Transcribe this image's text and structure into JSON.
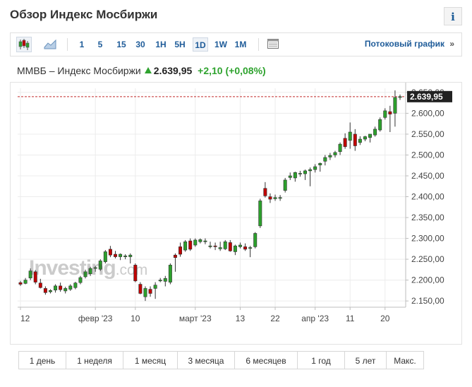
{
  "header": {
    "title": "Обзор Индекс Мосбиржи",
    "info_label": "i"
  },
  "toolbar": {
    "chart_type_icons": [
      "candlestick-icon",
      "area-chart-icon"
    ],
    "intervals": [
      "1",
      "5",
      "15",
      "30",
      "1H",
      "5H",
      "1D",
      "1W",
      "1M"
    ],
    "active_interval": "1D",
    "table_icon": "table-icon",
    "streaming_label": "Потоковый график",
    "streaming_arrow": "»"
  },
  "quote": {
    "name": "ММВБ – Индекс Мосбиржи",
    "last": "2.639,95",
    "change": "+2,10",
    "change_pct": "(+0,08%)",
    "direction_icon": "up-arrow-icon"
  },
  "watermark": {
    "brand": "Investing",
    "suffix": ".com"
  },
  "colors": {
    "up": "#2ca02c",
    "down": "#c00000",
    "link": "#1f5c99",
    "last_price_line": "#c22b2b",
    "last_price_box": "#222222"
  },
  "chart_data": {
    "type": "candlestick",
    "ylim": [
      2135,
      2660
    ],
    "yticks": [
      2150,
      2200,
      2250,
      2300,
      2350,
      2400,
      2450,
      2500,
      2550,
      2600,
      2650
    ],
    "ytick_labels": [
      "2.150,00",
      "2.200,00",
      "2.250,00",
      "2.300,00",
      "2.350,00",
      "2.400,00",
      "2.450,00",
      "2.500,00",
      "2.550,00",
      "2.600,00",
      "2.650,00"
    ],
    "xticks": [
      {
        "index": 0,
        "label": "12"
      },
      {
        "index": 15,
        "label": "февр '23"
      },
      {
        "index": 23,
        "label": "10"
      },
      {
        "index": 35,
        "label": "март '23"
      },
      {
        "index": 44,
        "label": "13"
      },
      {
        "index": 51,
        "label": "22"
      },
      {
        "index": 59,
        "label": "апр '23"
      },
      {
        "index": 66,
        "label": "11"
      },
      {
        "index": 73,
        "label": "20"
      }
    ],
    "last_value": 2639.95,
    "last_label": "2.639,95",
    "candles": [
      {
        "o": 2194,
        "h": 2198,
        "l": 2186,
        "c": 2190
      },
      {
        "o": 2192,
        "h": 2205,
        "l": 2190,
        "c": 2200
      },
      {
        "o": 2205,
        "h": 2228,
        "l": 2200,
        "c": 2222
      },
      {
        "o": 2220,
        "h": 2224,
        "l": 2190,
        "c": 2195
      },
      {
        "o": 2193,
        "h": 2203,
        "l": 2180,
        "c": 2182
      },
      {
        "o": 2180,
        "h": 2185,
        "l": 2165,
        "c": 2170
      },
      {
        "o": 2172,
        "h": 2178,
        "l": 2168,
        "c": 2175
      },
      {
        "o": 2176,
        "h": 2190,
        "l": 2170,
        "c": 2186
      },
      {
        "o": 2186,
        "h": 2194,
        "l": 2172,
        "c": 2177
      },
      {
        "o": 2174,
        "h": 2184,
        "l": 2168,
        "c": 2180
      },
      {
        "o": 2178,
        "h": 2190,
        "l": 2174,
        "c": 2186
      },
      {
        "o": 2182,
        "h": 2196,
        "l": 2178,
        "c": 2193
      },
      {
        "o": 2194,
        "h": 2210,
        "l": 2190,
        "c": 2206
      },
      {
        "o": 2208,
        "h": 2225,
        "l": 2204,
        "c": 2220
      },
      {
        "o": 2215,
        "h": 2232,
        "l": 2210,
        "c": 2228
      },
      {
        "o": 2228,
        "h": 2234,
        "l": 2220,
        "c": 2230
      },
      {
        "o": 2226,
        "h": 2250,
        "l": 2222,
        "c": 2246
      },
      {
        "o": 2244,
        "h": 2272,
        "l": 2240,
        "c": 2268
      },
      {
        "o": 2274,
        "h": 2282,
        "l": 2255,
        "c": 2260
      },
      {
        "o": 2262,
        "h": 2270,
        "l": 2252,
        "c": 2256
      },
      {
        "o": 2256,
        "h": 2264,
        "l": 2248,
        "c": 2262
      },
      {
        "o": 2256,
        "h": 2262,
        "l": 2250,
        "c": 2258
      },
      {
        "o": 2256,
        "h": 2264,
        "l": 2240,
        "c": 2260
      },
      {
        "o": 2236,
        "h": 2240,
        "l": 2195,
        "c": 2198
      },
      {
        "o": 2190,
        "h": 2195,
        "l": 2166,
        "c": 2168
      },
      {
        "o": 2160,
        "h": 2185,
        "l": 2150,
        "c": 2180
      },
      {
        "o": 2178,
        "h": 2185,
        "l": 2160,
        "c": 2168
      },
      {
        "o": 2180,
        "h": 2195,
        "l": 2155,
        "c": 2188
      },
      {
        "o": 2198,
        "h": 2205,
        "l": 2195,
        "c": 2200
      },
      {
        "o": 2197,
        "h": 2210,
        "l": 2185,
        "c": 2204
      },
      {
        "o": 2195,
        "h": 2240,
        "l": 2190,
        "c": 2236
      },
      {
        "o": 2260,
        "h": 2264,
        "l": 2220,
        "c": 2254
      },
      {
        "o": 2280,
        "h": 2290,
        "l": 2256,
        "c": 2262
      },
      {
        "o": 2272,
        "h": 2296,
        "l": 2268,
        "c": 2292
      },
      {
        "o": 2294,
        "h": 2300,
        "l": 2270,
        "c": 2274
      },
      {
        "o": 2284,
        "h": 2300,
        "l": 2280,
        "c": 2296
      },
      {
        "o": 2292,
        "h": 2300,
        "l": 2288,
        "c": 2297
      },
      {
        "o": 2292,
        "h": 2300,
        "l": 2286,
        "c": 2294
      },
      {
        "o": 2280,
        "h": 2292,
        "l": 2276,
        "c": 2282
      },
      {
        "o": 2282,
        "h": 2290,
        "l": 2272,
        "c": 2280
      },
      {
        "o": 2275,
        "h": 2292,
        "l": 2270,
        "c": 2278
      },
      {
        "o": 2275,
        "h": 2296,
        "l": 2272,
        "c": 2292
      },
      {
        "o": 2290,
        "h": 2296,
        "l": 2268,
        "c": 2270
      },
      {
        "o": 2268,
        "h": 2285,
        "l": 2260,
        "c": 2282
      },
      {
        "o": 2280,
        "h": 2290,
        "l": 2276,
        "c": 2284
      },
      {
        "o": 2280,
        "h": 2288,
        "l": 2270,
        "c": 2274
      },
      {
        "o": 2276,
        "h": 2282,
        "l": 2255,
        "c": 2278
      },
      {
        "o": 2280,
        "h": 2315,
        "l": 2276,
        "c": 2312
      },
      {
        "o": 2330,
        "h": 2395,
        "l": 2325,
        "c": 2390
      },
      {
        "o": 2420,
        "h": 2435,
        "l": 2398,
        "c": 2402
      },
      {
        "o": 2400,
        "h": 2408,
        "l": 2385,
        "c": 2394
      },
      {
        "o": 2395,
        "h": 2405,
        "l": 2390,
        "c": 2398
      },
      {
        "o": 2396,
        "h": 2404,
        "l": 2390,
        "c": 2398
      },
      {
        "o": 2415,
        "h": 2445,
        "l": 2410,
        "c": 2440
      },
      {
        "o": 2446,
        "h": 2458,
        "l": 2440,
        "c": 2450
      },
      {
        "o": 2445,
        "h": 2460,
        "l": 2436,
        "c": 2458
      },
      {
        "o": 2455,
        "h": 2462,
        "l": 2448,
        "c": 2456
      },
      {
        "o": 2455,
        "h": 2465,
        "l": 2440,
        "c": 2462
      },
      {
        "o": 2462,
        "h": 2470,
        "l": 2425,
        "c": 2465
      },
      {
        "o": 2465,
        "h": 2478,
        "l": 2458,
        "c": 2472
      },
      {
        "o": 2476,
        "h": 2482,
        "l": 2460,
        "c": 2480
      },
      {
        "o": 2485,
        "h": 2500,
        "l": 2475,
        "c": 2494
      },
      {
        "o": 2495,
        "h": 2505,
        "l": 2488,
        "c": 2499
      },
      {
        "o": 2500,
        "h": 2510,
        "l": 2494,
        "c": 2506
      },
      {
        "o": 2508,
        "h": 2530,
        "l": 2500,
        "c": 2526
      },
      {
        "o": 2540,
        "h": 2552,
        "l": 2515,
        "c": 2520
      },
      {
        "o": 2535,
        "h": 2578,
        "l": 2515,
        "c": 2555
      },
      {
        "o": 2550,
        "h": 2562,
        "l": 2510,
        "c": 2522
      },
      {
        "o": 2530,
        "h": 2545,
        "l": 2524,
        "c": 2538
      },
      {
        "o": 2538,
        "h": 2546,
        "l": 2533,
        "c": 2544
      },
      {
        "o": 2542,
        "h": 2550,
        "l": 2530,
        "c": 2550
      },
      {
        "o": 2548,
        "h": 2568,
        "l": 2544,
        "c": 2562
      },
      {
        "o": 2560,
        "h": 2590,
        "l": 2556,
        "c": 2585
      },
      {
        "o": 2590,
        "h": 2612,
        "l": 2585,
        "c": 2606
      },
      {
        "o": 2604,
        "h": 2618,
        "l": 2555,
        "c": 2598
      },
      {
        "o": 2600,
        "h": 2655,
        "l": 2568,
        "c": 2638
      },
      {
        "o": 2638,
        "h": 2645,
        "l": 2632,
        "c": 2640
      }
    ]
  },
  "periods": [
    "1 день",
    "1 неделя",
    "1 месяц",
    "3 месяца",
    "6 месяцев",
    "1 год",
    "5 лет",
    "Макс."
  ]
}
